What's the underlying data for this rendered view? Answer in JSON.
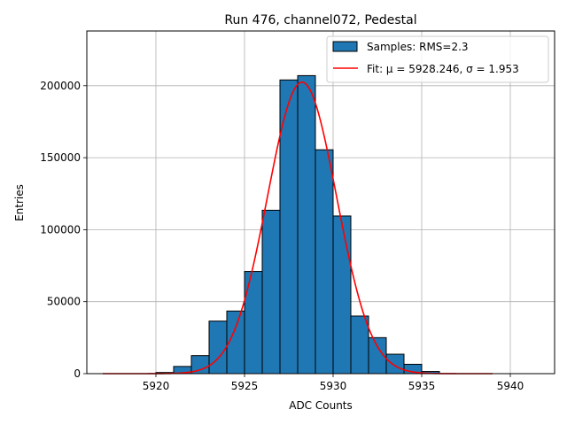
{
  "chart_data": {
    "type": "bar",
    "title": "Run 476, channel072, Pedestal",
    "xlabel": "ADC Counts",
    "ylabel": "Entries",
    "xlim": [
      5916.1,
      5942.5
    ],
    "ylim": [
      0,
      238000
    ],
    "grid": true,
    "legend_position": "top-right",
    "x_ticks": [
      5920,
      5925,
      5930,
      5935,
      5940
    ],
    "y_ticks": [
      0,
      50000,
      100000,
      150000,
      200000
    ],
    "colors": {
      "bar_fill": "#1f77b4",
      "bar_edge": "#000000",
      "fit_line": "#ff0000",
      "grid": "#b0b0b0"
    },
    "histogram": {
      "name": "Samples: RMS=2.3",
      "bin_edges": [
        5920,
        5921,
        5922,
        5923,
        5924,
        5925,
        5926,
        5927,
        5928,
        5929,
        5930,
        5931,
        5932,
        5933,
        5934,
        5935,
        5936
      ],
      "counts": [
        800,
        5000,
        12500,
        36500,
        43500,
        71000,
        113500,
        204000,
        207000,
        155500,
        109500,
        40000,
        25000,
        13500,
        6500,
        1500
      ]
    },
    "fit": {
      "label": "Fit: μ = 5928.246, σ = 1.953",
      "mu": 5928.246,
      "sigma": 1.953,
      "amplitude": 202500,
      "x_range": [
        5917,
        5939
      ]
    }
  }
}
